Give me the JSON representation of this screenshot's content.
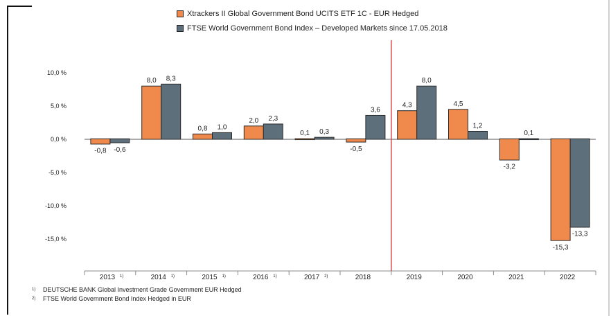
{
  "legend": {
    "series1": "Xtrackers II Global Government Bond UCITS ETF 1C - EUR Hedged",
    "series2": "FTSE World Government Bond Index – Developed Markets since 17.05.2018"
  },
  "footnotes": [
    {
      "mark": "1)",
      "text": "DEUTSCHE BANK Global Investment Grade Government EUR Hedged"
    },
    {
      "mark": "2)",
      "text": "FTSE World Government Bond Index Hedged in EUR"
    }
  ],
  "colors": {
    "series1": "#ef8a4c",
    "series2": "#5c6f7b",
    "divider": "#d9464c"
  },
  "chart_data": {
    "type": "bar",
    "categories": [
      "2013",
      "2014",
      "2015",
      "2016",
      "2017",
      "2018",
      "2019",
      "2020",
      "2021",
      "2022"
    ],
    "category_notes": [
      "1)",
      "1)",
      "1)",
      "1)",
      "2)",
      "",
      "",
      "",
      "",
      ""
    ],
    "series": [
      {
        "name": "Xtrackers II Global Government Bond UCITS ETF 1C - EUR Hedged",
        "values": [
          -0.8,
          8.0,
          0.8,
          2.0,
          0.1,
          -0.5,
          4.3,
          4.5,
          -3.2,
          -15.3
        ],
        "labels": [
          "-0,8",
          "8,0",
          "0,8",
          "2,0",
          "0,1",
          "-0,5",
          "4,3",
          "4,5",
          "-3,2",
          "-15,3"
        ]
      },
      {
        "name": "FTSE World Government Bond Index – Developed Markets since 17.05.2018",
        "values": [
          -0.6,
          8.3,
          1.0,
          2.3,
          0.3,
          3.6,
          8.0,
          1.2,
          0.1,
          -13.3
        ],
        "labels": [
          "-0,6",
          "8,3",
          "1,0",
          "2,3",
          "0,3",
          "3,6",
          "8,0",
          "1,2",
          "0,1",
          "-13,3"
        ]
      }
    ],
    "yticks": [
      10,
      5,
      0,
      -5,
      -10,
      -15
    ],
    "ytick_labels": [
      "10,0 %",
      "5,0 %",
      "0,0 %",
      "-5,0 %",
      "-10,0 %",
      "-15,0 %"
    ],
    "ylim": [
      -19.5,
      10.5
    ],
    "divider_after_category": "2018",
    "grid": false,
    "legend_position": "top"
  }
}
